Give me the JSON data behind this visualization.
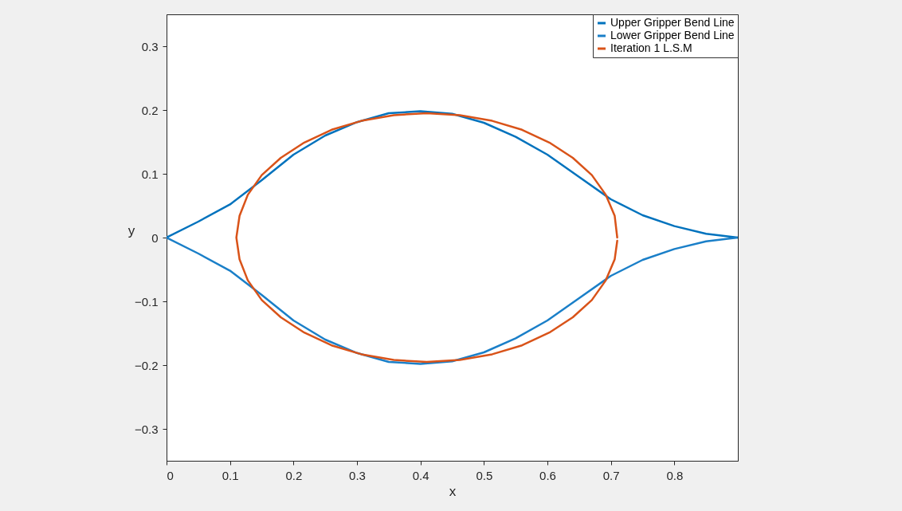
{
  "chart_data": {
    "type": "line",
    "xlabel": "x",
    "ylabel": "y",
    "xlim": [
      0,
      0.9
    ],
    "ylim": [
      -0.35,
      0.35
    ],
    "xticks": [
      0,
      0.1,
      0.2,
      0.3,
      0.4,
      0.5,
      0.6,
      0.7,
      0.8
    ],
    "yticks": [
      -0.3,
      -0.2,
      -0.1,
      0,
      0.1,
      0.2,
      0.3
    ],
    "grid": false,
    "legend": "top right",
    "line_style": "solid",
    "marker": "none",
    "series": [
      {
        "name": "Upper Gripper Bend Line",
        "color": "#0072bd",
        "x": [
          0,
          0.05,
          0.1,
          0.15,
          0.2,
          0.25,
          0.3,
          0.35,
          0.4,
          0.45,
          0.5,
          0.55,
          0.6,
          0.65,
          0.7,
          0.75,
          0.8,
          0.85,
          0.9
        ],
        "values": [
          0,
          0.025,
          0.052,
          0.09,
          0.13,
          0.16,
          0.181,
          0.195,
          0.198,
          0.194,
          0.18,
          0.158,
          0.13,
          0.095,
          0.06,
          0.035,
          0.018,
          0.006,
          0
        ]
      },
      {
        "name": "Lower Gripper Bend Line",
        "color": "#1a7fc8",
        "x": [
          0,
          0.05,
          0.1,
          0.15,
          0.2,
          0.25,
          0.3,
          0.35,
          0.4,
          0.45,
          0.5,
          0.55,
          0.6,
          0.65,
          0.7,
          0.75,
          0.8,
          0.85,
          0.9
        ],
        "values": [
          0,
          -0.025,
          -0.052,
          -0.09,
          -0.13,
          -0.16,
          -0.181,
          -0.195,
          -0.198,
          -0.194,
          -0.18,
          -0.158,
          -0.13,
          -0.095,
          -0.06,
          -0.035,
          -0.018,
          -0.006,
          0
        ]
      },
      {
        "name": "Iteration 1 L.S.M",
        "color": "#d95319",
        "x": [
          0.71,
          0.706,
          0.692,
          0.67,
          0.64,
          0.603,
          0.56,
          0.513,
          0.462,
          0.41,
          0.358,
          0.307,
          0.26,
          0.217,
          0.18,
          0.15,
          0.128,
          0.115,
          0.11,
          0.115,
          0.128,
          0.15,
          0.18,
          0.217,
          0.26,
          0.307,
          0.358,
          0.41,
          0.462,
          0.513,
          0.56,
          0.603,
          0.64,
          0.67,
          0.692,
          0.706,
          0.71
        ],
        "values": [
          0,
          0.034,
          0.067,
          0.098,
          0.125,
          0.149,
          0.169,
          0.183,
          0.192,
          0.195,
          0.192,
          0.183,
          0.169,
          0.149,
          0.125,
          0.098,
          0.067,
          0.034,
          0,
          -0.034,
          -0.067,
          -0.098,
          -0.125,
          -0.149,
          -0.169,
          -0.183,
          -0.192,
          -0.195,
          -0.192,
          -0.183,
          -0.169,
          -0.149,
          -0.125,
          -0.098,
          -0.067,
          -0.034,
          -0.005
        ]
      }
    ]
  }
}
